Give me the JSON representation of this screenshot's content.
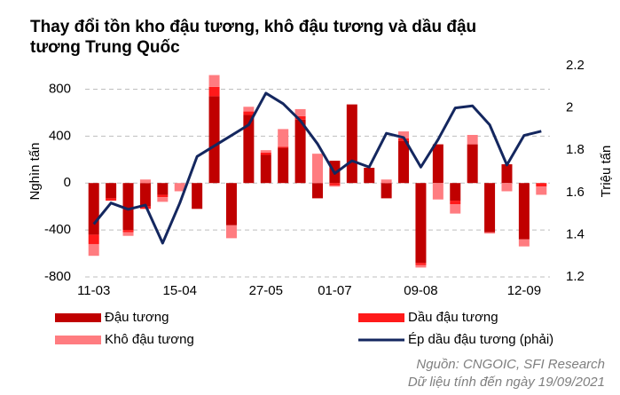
{
  "chart_data": {
    "type": "bar",
    "title": "Thay đổi tồn kho đậu tương, khô đậu tương và dầu đậu tương Trung Quốc",
    "y_label": "Nghìn tấn",
    "y2_label": "Triệu tấn",
    "categories": [
      "11-03",
      null,
      null,
      null,
      null,
      "15-04",
      null,
      null,
      null,
      null,
      "27-05",
      null,
      null,
      null,
      "01-07",
      null,
      null,
      null,
      null,
      "09-08",
      null,
      null,
      null,
      null,
      null,
      "12-09",
      null
    ],
    "series": [
      {
        "name": "Đậu tương",
        "color": "#c00000",
        "values": [
          -440,
          -130,
          -400,
          -200,
          -100,
          0,
          -220,
          740,
          -360,
          580,
          240,
          300,
          540,
          -130,
          190,
          670,
          130,
          -130,
          360,
          -680,
          330,
          -150,
          330,
          -420,
          160,
          -480,
          0
        ]
      },
      {
        "name": "Dầu đậu tương",
        "color": "#ff1a1a",
        "values": [
          -80,
          -20,
          -20,
          -20,
          -20,
          0,
          0,
          80,
          0,
          30,
          20,
          10,
          30,
          0,
          -20,
          0,
          0,
          0,
          20,
          -20,
          0,
          -30,
          0,
          0,
          0,
          0,
          -30
        ]
      },
      {
        "name": "Khô đậu tương",
        "color": "#ff7c80",
        "values": [
          -100,
          0,
          -30,
          30,
          -40,
          -70,
          0,
          100,
          -110,
          40,
          20,
          150,
          60,
          250,
          -10,
          0,
          0,
          30,
          60,
          -20,
          -140,
          -80,
          80,
          -10,
          -70,
          -60,
          -70
        ]
      },
      {
        "name": "Ép dầu đậu tương (phải)",
        "color": "#14275f",
        "axis": "y2",
        "type": "line",
        "values": [
          1.45,
          1.55,
          1.52,
          1.54,
          1.36,
          1.55,
          1.77,
          1.82,
          1.87,
          1.92,
          2.07,
          2.02,
          1.94,
          1.83,
          1.69,
          1.75,
          1.72,
          1.88,
          1.86,
          1.72,
          1.85,
          2.0,
          2.01,
          1.92,
          1.73,
          1.87,
          1.89
        ]
      }
    ],
    "ylim": [
      -800,
      1000
    ],
    "yticks": [
      -800,
      -400,
      0,
      400,
      800
    ],
    "y2lim": [
      1.2,
      2.2
    ],
    "y2ticks": [
      1.2,
      1.4,
      1.6,
      1.8,
      2,
      2.2
    ],
    "grid": true,
    "notes": [
      "Nguồn: CNGOIC, SFI Research",
      "Dữ liệu tính đến ngày 19/09/2021"
    ]
  }
}
